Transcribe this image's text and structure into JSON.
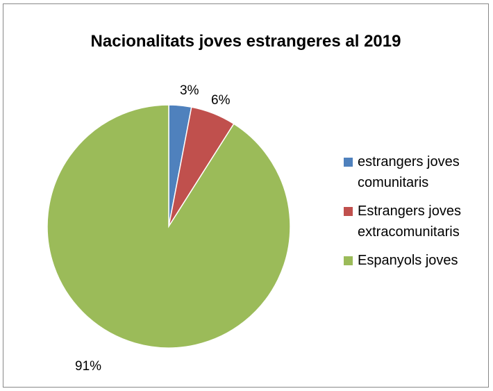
{
  "chart_data": {
    "type": "pie",
    "title": "Nacionalitats joves estrangeres al 2019",
    "categories": [
      "estrangers joves comunitaris",
      "Estrangers joves extracomunitaris",
      "Espanyols joves"
    ],
    "values": [
      3,
      6,
      91
    ],
    "data_labels": [
      "3%",
      "6%",
      "91%"
    ],
    "colors": [
      "#4f81bd",
      "#c0504d",
      "#9bbb59"
    ],
    "legend_position": "right",
    "legend": [
      "estrangers joves comunitaris",
      "Estrangers joves extracomunitaris",
      "Espanyols joves"
    ]
  }
}
